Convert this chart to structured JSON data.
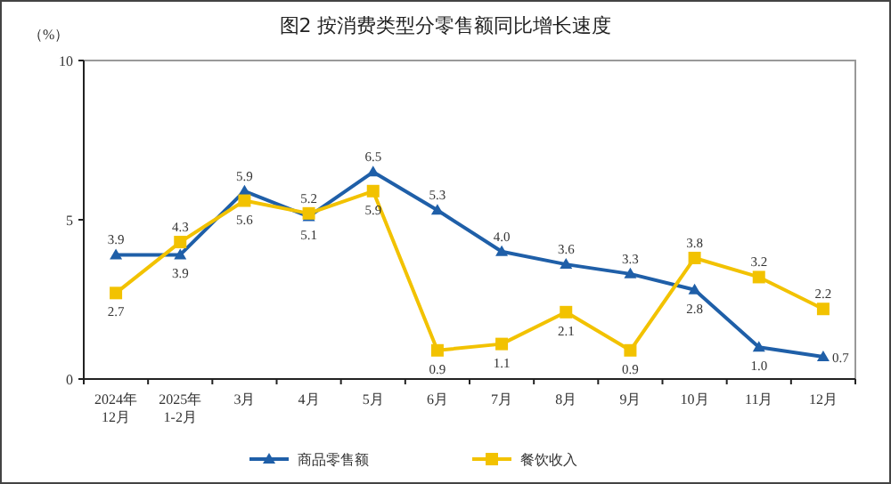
{
  "chart_data": {
    "type": "line",
    "title": "图2  按消费类型分零售额同比增长速度",
    "ylabel": "（%）",
    "categories": [
      "2024年\n12月",
      "2025年\n1-2月",
      "3月",
      "4月",
      "5月",
      "6月",
      "7月",
      "8月",
      "9月",
      "10月",
      "11月",
      "12月"
    ],
    "series": [
      {
        "name": "商品零售额",
        "color": "#1f5fa8",
        "marker": "triangle",
        "values": [
          3.9,
          3.9,
          5.9,
          5.1,
          6.5,
          5.3,
          4.0,
          3.6,
          3.3,
          2.8,
          1.0,
          0.7
        ],
        "value_labels": [
          "3.9",
          "3.9",
          "5.9",
          "5.1",
          "6.5",
          "5.3",
          "4.0",
          "3.6",
          "3.3",
          "2.8",
          "1.0",
          "0.7"
        ]
      },
      {
        "name": "餐饮收入",
        "color": "#f2c200",
        "marker": "square",
        "values": [
          2.7,
          4.3,
          5.6,
          5.2,
          5.9,
          0.9,
          1.1,
          2.1,
          0.9,
          3.8,
          3.2,
          2.2
        ],
        "value_labels": [
          "2.7",
          "4.3",
          "5.6",
          "5.2",
          "5.9",
          "0.9",
          "1.1",
          "2.1",
          "0.9",
          "3.8",
          "3.2",
          "2.2"
        ]
      }
    ],
    "ylim": [
      0,
      10
    ],
    "yticks": [
      0,
      5,
      10
    ],
    "grid": false,
    "legend": "bottom"
  }
}
